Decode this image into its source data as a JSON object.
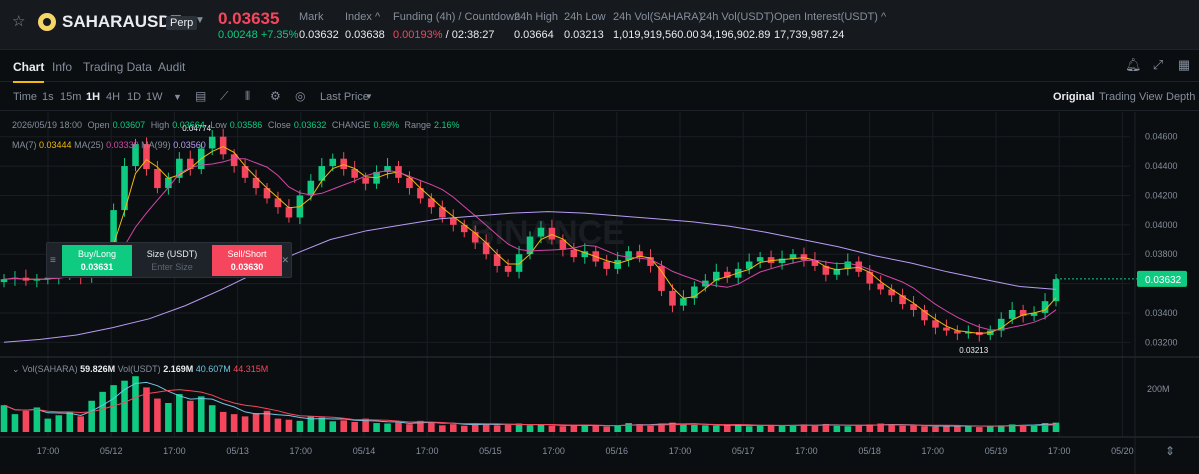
{
  "header": {
    "symbol": "SAHARAUSDT",
    "contract_type": "Perp",
    "last_price": "0.03635",
    "change": "0.00248 +7.35%",
    "stats": [
      {
        "label": "Mark",
        "value": "0.03632"
      },
      {
        "label": "Index ^",
        "value": "0.03638"
      },
      {
        "label": "Funding (4h) / Countdown",
        "value_red": "0.00193%",
        "value": " / 02:38:27"
      },
      {
        "label": "24h High",
        "value": "0.03664"
      },
      {
        "label": "24h Low",
        "value": "0.03213"
      },
      {
        "label": "24h Vol(SAHARA)",
        "value": "1,019,919,560.00"
      },
      {
        "label": "24h Vol(USDT)",
        "value": "34,196,902.89"
      },
      {
        "label": "Open Interest(USDT) ^",
        "value": "17,739,987.24"
      }
    ]
  },
  "tabs": [
    "Chart",
    "Info",
    "Trading Data",
    "Audit"
  ],
  "toolbar": {
    "intervals": [
      "Time",
      "1s",
      "15m",
      "1H",
      "4H",
      "1D",
      "1W"
    ],
    "active_interval": "1H",
    "price_type": "Last Price",
    "views": [
      "Original",
      "Trading View",
      "Depth"
    ],
    "active_view": "Original"
  },
  "ohlc": {
    "date": "2026/05/19 18:00",
    "open_label": "Open",
    "open": "0.03607",
    "high_label": "High",
    "high": "0.03664",
    "low_label": "Low",
    "low": "0.03586",
    "close_label": "Close",
    "close": "0.03632",
    "change_label": "CHANGE",
    "change": "0.69%",
    "range_label": "Range",
    "range": "2.16%"
  },
  "ma": {
    "ma7_label": "MA(7)",
    "ma7": "0.03444",
    "ma25_label": "MA(25)",
    "ma25": "0.03339",
    "ma99_label": "MA(99)",
    "ma99": "0.03560"
  },
  "volume": {
    "label": "Vol(SAHARA)",
    "value": "59.826M",
    "usdt_label": "Vol(USDT)",
    "usdt": "2.169M",
    "ma1": "40.607M",
    "ma2": "44.315M",
    "axis_label": "200M"
  },
  "trade_panel": {
    "buy_label": "Buy/Long",
    "buy_price": "0.03631",
    "size_label": "Size (USDT)",
    "size_placeholder": "Enter Size",
    "sell_label": "Sell/Short",
    "sell_price": "0.03630"
  },
  "watermark": "BINANCE",
  "chart_data": {
    "type": "candlestick",
    "interval": "1H",
    "y_ticks": [
      "0.04600",
      "0.04400",
      "0.04200",
      "0.04000",
      "0.03800",
      "0.03600",
      "0.03400",
      "0.03200"
    ],
    "ylim": [
      0.031,
      0.047
    ],
    "x_ticks": [
      "17:00",
      "05/12",
      "17:00",
      "05/13",
      "17:00",
      "05/14",
      "17:00",
      "05/15",
      "17:00",
      "05/16",
      "17:00",
      "05/17",
      "17:00",
      "05/18",
      "17:00",
      "05/19",
      "17:00",
      "05/20"
    ],
    "high_marker": "0.04774",
    "low_marker": "0.03213",
    "current_price_label": "0.03632",
    "close_series": [
      0.0363,
      0.0364,
      0.0362,
      0.0363,
      0.0364,
      0.0366,
      0.037,
      0.0364,
      0.0372,
      0.0378,
      0.041,
      0.044,
      0.0455,
      0.0438,
      0.0425,
      0.0432,
      0.0445,
      0.0438,
      0.0452,
      0.046,
      0.0448,
      0.044,
      0.0432,
      0.0425,
      0.0418,
      0.0412,
      0.0405,
      0.042,
      0.043,
      0.044,
      0.0445,
      0.0438,
      0.0432,
      0.0428,
      0.0436,
      0.044,
      0.0432,
      0.0425,
      0.0418,
      0.0412,
      0.0405,
      0.04,
      0.0395,
      0.0388,
      0.038,
      0.0372,
      0.0368,
      0.038,
      0.0392,
      0.0398,
      0.039,
      0.0383,
      0.0378,
      0.0382,
      0.0375,
      0.037,
      0.0376,
      0.0382,
      0.0378,
      0.0372,
      0.0355,
      0.0345,
      0.035,
      0.0358,
      0.0362,
      0.0368,
      0.0364,
      0.037,
      0.0375,
      0.0378,
      0.0374,
      0.0377,
      0.038,
      0.0376,
      0.0372,
      0.0366,
      0.037,
      0.0375,
      0.0368,
      0.036,
      0.0356,
      0.0352,
      0.0346,
      0.0342,
      0.0335,
      0.033,
      0.0328,
      0.0326,
      0.0327,
      0.0325,
      0.0328,
      0.0336,
      0.0342,
      0.0338,
      0.034,
      0.0348,
      0.0363
    ],
    "ma99_series": [
      0.032,
      0.0322,
      0.0325,
      0.033,
      0.0336,
      0.0345,
      0.0356,
      0.0368,
      0.038,
      0.039,
      0.0396,
      0.04,
      0.0404,
      0.0406,
      0.0408,
      0.0409,
      0.0408,
      0.0406,
      0.0404,
      0.0402,
      0.0399,
      0.0395,
      0.039,
      0.0385,
      0.0379,
      0.0374,
      0.0368,
      0.0363,
      0.0358,
      0.0356
    ],
    "volume_series": [
      120,
      80,
      95,
      110,
      60,
      75,
      90,
      70,
      140,
      180,
      210,
      230,
      250,
      200,
      150,
      130,
      170,
      140,
      160,
      120,
      90,
      80,
      70,
      85,
      95,
      60,
      55,
      50,
      70,
      65,
      48,
      52,
      45,
      60,
      40,
      38,
      42,
      35,
      50,
      45,
      30,
      35,
      28,
      40,
      36,
      30,
      32,
      38,
      30,
      34,
      28,
      26,
      30,
      32,
      28,
      25,
      30,
      40,
      35,
      28,
      38,
      42,
      35,
      32,
      30,
      28,
      34,
      30,
      26,
      28,
      32,
      30,
      28,
      34,
      30,
      36,
      28,
      26,
      30,
      34,
      38,
      32,
      28,
      30,
      26,
      24,
      28,
      30,
      26,
      22,
      28,
      30,
      34,
      30,
      32,
      40,
      42
    ]
  }
}
